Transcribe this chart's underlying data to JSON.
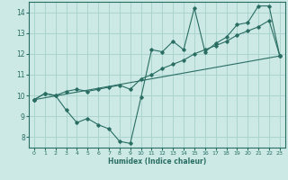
{
  "background_color": "#cce9e5",
  "line_color": "#2a6e63",
  "grid_color": "#aad4cf",
  "xlabel": "Humidex (Indice chaleur)",
  "xlim": [
    -0.5,
    23.5
  ],
  "ylim": [
    7.5,
    14.5
  ],
  "xticks": [
    0,
    1,
    2,
    3,
    4,
    5,
    6,
    7,
    8,
    9,
    10,
    11,
    12,
    13,
    14,
    15,
    16,
    17,
    18,
    19,
    20,
    21,
    22,
    23
  ],
  "yticks": [
    8,
    9,
    10,
    11,
    12,
    13,
    14
  ],
  "series": [
    {
      "x": [
        0,
        1,
        2,
        3,
        4,
        5,
        6,
        7,
        8,
        9,
        10,
        11,
        12,
        13,
        14,
        15,
        16,
        17,
        18,
        19,
        20,
        21,
        22,
        23
      ],
      "y": [
        9.8,
        10.1,
        10.0,
        9.3,
        8.7,
        8.9,
        8.6,
        8.4,
        7.8,
        7.7,
        9.9,
        12.2,
        12.1,
        12.6,
        12.2,
        14.2,
        12.1,
        12.5,
        12.8,
        13.4,
        13.5,
        14.3,
        14.3,
        11.9
      ]
    },
    {
      "x": [
        0,
        1,
        2,
        3,
        4,
        5,
        6,
        7,
        8,
        9,
        10,
        11,
        12,
        13,
        14,
        15,
        16,
        17,
        18,
        19,
        20,
        21,
        22,
        23
      ],
      "y": [
        9.8,
        10.1,
        10.0,
        10.2,
        10.3,
        10.2,
        10.3,
        10.4,
        10.5,
        10.3,
        10.8,
        11.0,
        11.3,
        11.5,
        11.7,
        12.0,
        12.2,
        12.4,
        12.6,
        12.9,
        13.1,
        13.3,
        13.6,
        11.9
      ]
    },
    {
      "x": [
        0,
        23
      ],
      "y": [
        9.8,
        11.9
      ]
    }
  ]
}
